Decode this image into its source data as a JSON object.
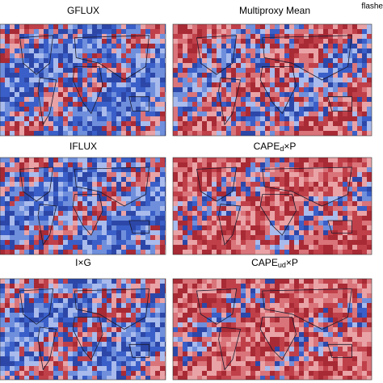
{
  "corner_text": "flashe",
  "panels": [
    {
      "title": "GFLUX"
    },
    {
      "title": "Multiproxy Mean"
    },
    {
      "title": "IFLUX"
    },
    {
      "title": {
        "main": "CAPE",
        "sub": "d",
        "rest": "×P"
      }
    },
    {
      "title": "I×G"
    },
    {
      "title": {
        "main": "CAPE",
        "sub": "ud",
        "rest": "×P"
      }
    }
  ]
}
